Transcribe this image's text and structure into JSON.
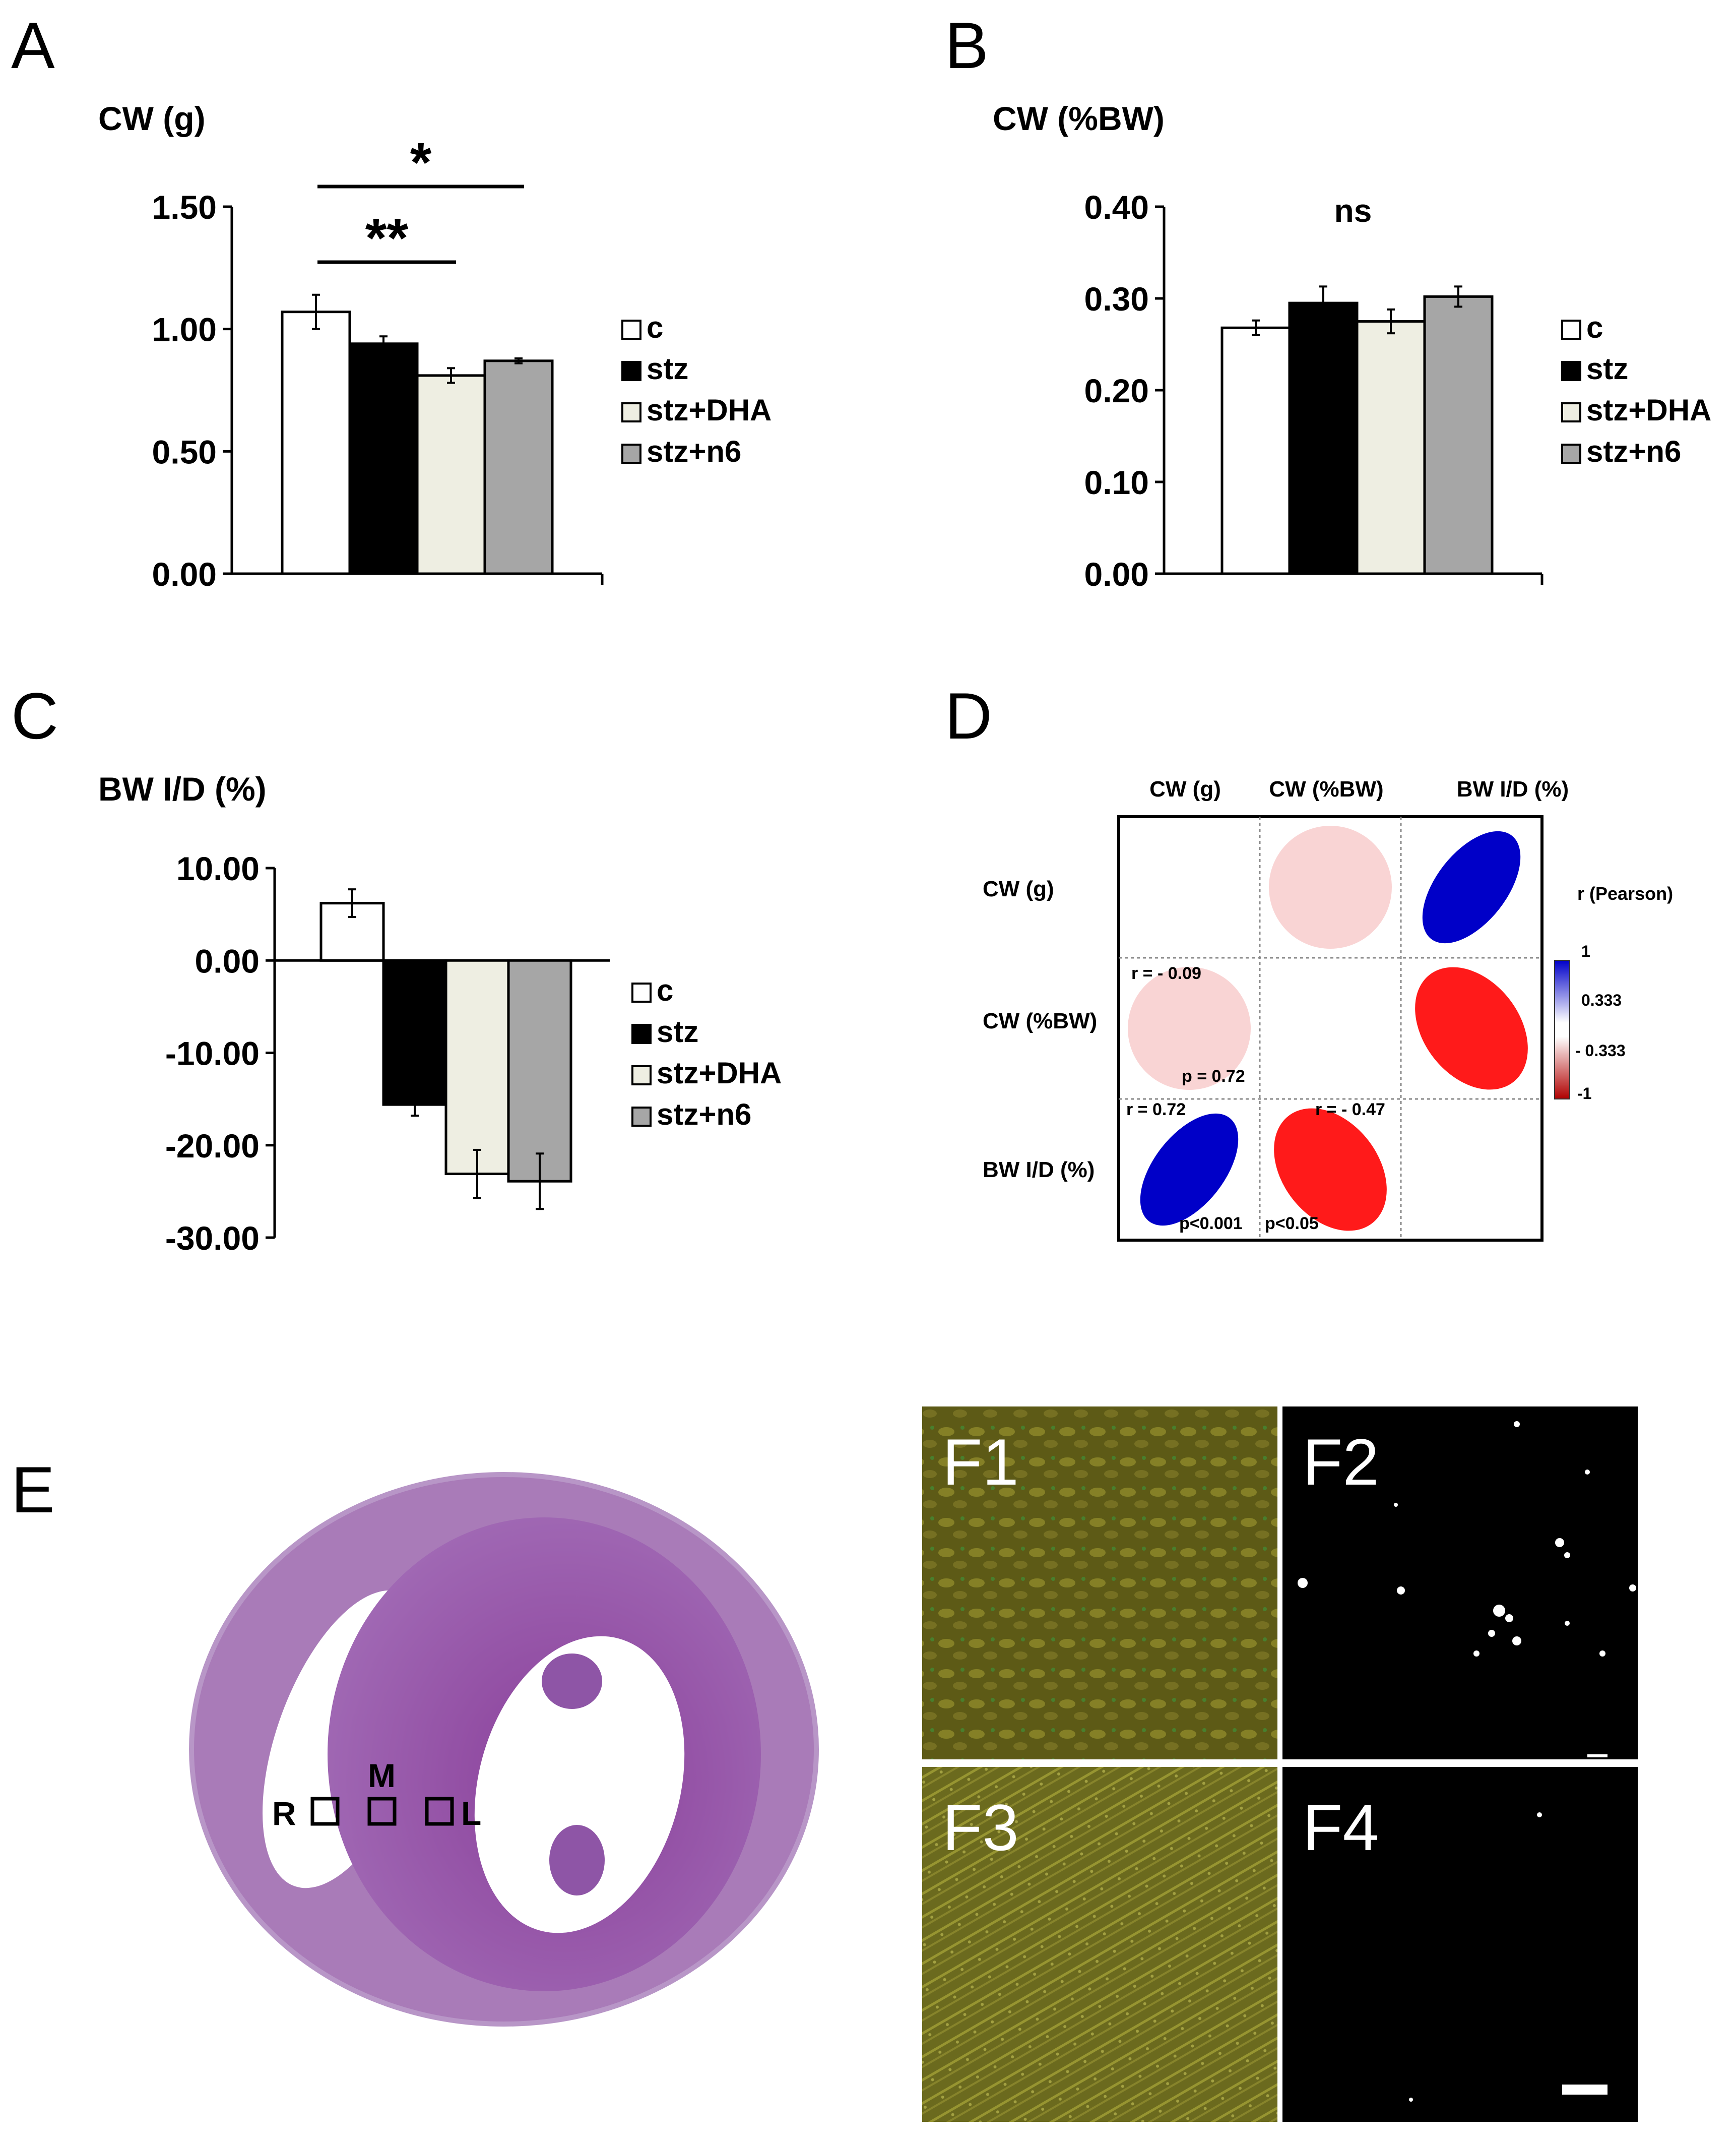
{
  "panels": {
    "a": "A",
    "b": "B",
    "c": "C",
    "d": "D",
    "e": "E"
  },
  "legend": {
    "items": [
      {
        "label": "c",
        "color": "#ffffff"
      },
      {
        "label": "stz",
        "color": "#000000"
      },
      {
        "label": "stz+DHA",
        "color": "#eeeee2"
      },
      {
        "label": "stz+n6",
        "color": "#a6a6a6"
      }
    ]
  },
  "chart_data": [
    {
      "panel": "A",
      "type": "bar",
      "ylabel": "CW (g)",
      "categories": [
        "c",
        "stz",
        "stz+DHA",
        "stz+n6"
      ],
      "values": [
        1.07,
        0.94,
        0.81,
        0.87
      ],
      "errors": [
        0.07,
        0.03,
        0.03,
        0.01
      ],
      "ylim": [
        0,
        1.5
      ],
      "yticks": [
        "0.00",
        "0.50",
        "1.00",
        "1.50"
      ],
      "yticks_values": [
        0,
        0.5,
        1.0,
        1.5
      ],
      "significance": [
        {
          "from": 0,
          "to": 2,
          "text": "**"
        },
        {
          "from": 0,
          "to": 3,
          "text": "*"
        }
      ]
    },
    {
      "panel": "B",
      "type": "bar",
      "ylabel": "CW (%BW)",
      "categories": [
        "c",
        "stz",
        "stz+DHA",
        "stz+n6"
      ],
      "values": [
        0.268,
        0.295,
        0.275,
        0.302
      ],
      "errors": [
        0.008,
        0.018,
        0.013,
        0.011
      ],
      "ylim": [
        0,
        0.4
      ],
      "yticks": [
        "0.00",
        "0.10",
        "0.20",
        "0.30",
        "0.40"
      ],
      "yticks_values": [
        0,
        0.1,
        0.2,
        0.3,
        0.4
      ],
      "annotation": "ns"
    },
    {
      "panel": "C",
      "type": "bar",
      "ylabel": "BW I/D (%)",
      "categories": [
        "c",
        "stz",
        "stz+DHA",
        "stz+n6"
      ],
      "values": [
        6.2,
        -15.6,
        -23.1,
        -23.9
      ],
      "errors": [
        1.5,
        1.2,
        2.6,
        3.0
      ],
      "ylim": [
        -30,
        10
      ],
      "yticks": [
        "-30.00",
        "-20.00",
        "-10.00",
        "0.00",
        "10.00"
      ],
      "yticks_values": [
        -30,
        -20,
        -10,
        0,
        10
      ]
    },
    {
      "panel": "D",
      "type": "heatmap",
      "variables": [
        "CW (g)",
        "CW (%BW)",
        "BW I/D (%)"
      ],
      "correlations": [
        {
          "row": 1,
          "col": 0,
          "r": -0.09,
          "r_label": "r = - 0.09",
          "p_label": "p = 0.72"
        },
        {
          "row": 2,
          "col": 0,
          "r": 0.72,
          "r_label": "r = 0.72",
          "p_label": "p<0.001"
        },
        {
          "row": 2,
          "col": 1,
          "r": -0.47,
          "r_label": "r = - 0.47",
          "p_label": "p<0.05"
        }
      ],
      "upper": [
        {
          "row": 0,
          "col": 1,
          "r": -0.09,
          "color": "#f9d4d4"
        },
        {
          "row": 0,
          "col": 2,
          "r": 0.72,
          "color": "#0000c8"
        },
        {
          "row": 1,
          "col": 2,
          "r": -0.47,
          "color": "#ff1a1a"
        }
      ],
      "lower_colors": [
        "#f9d4d4",
        "#0000c8",
        "#ff1a1a"
      ],
      "colorbar": {
        "title": "r (Pearson)",
        "ticks": [
          "1",
          "0.333",
          "- 0.333",
          "-1"
        ],
        "tick_values": [
          1,
          0.333,
          -0.333,
          -1
        ]
      }
    }
  ],
  "heart": {
    "labels": {
      "r": "R",
      "m": "M",
      "l": "L"
    }
  },
  "micro": {
    "f1": "F1",
    "f2": "F2",
    "f3": "F3",
    "f4": "F4"
  }
}
